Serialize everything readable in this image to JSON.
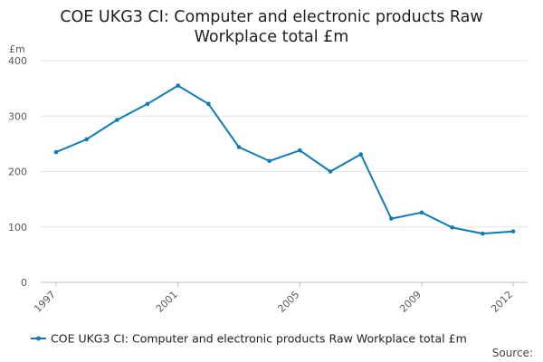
{
  "chart_data": {
    "type": "line",
    "title_lines": [
      "COE UKG3 CI: Computer and electronic products Raw",
      "Workplace total £m"
    ],
    "y_unit": "£m",
    "ylim": [
      0,
      400
    ],
    "y_ticks": [
      0,
      100,
      200,
      300,
      400
    ],
    "x_range": [
      1997,
      2012
    ],
    "x_tick_labels": [
      "1997",
      "2001",
      "2005",
      "2009",
      "2012"
    ],
    "grid": true,
    "legend_position": "bottom",
    "series": [
      {
        "name": "COE UKG3 CI: Computer and electronic products Raw Workplace total £m",
        "color": "#0f7bb5",
        "x": [
          1997,
          1998,
          1999,
          2000,
          2001,
          2002,
          2003,
          2004,
          2005,
          2006,
          2007,
          2008,
          2009,
          2010,
          2011,
          2012
        ],
        "values": [
          235,
          258,
          293,
          322,
          355,
          322,
          244,
          219,
          238,
          200,
          231,
          115,
          126,
          99,
          88,
          92
        ]
      }
    ],
    "source_label": "Source:"
  }
}
